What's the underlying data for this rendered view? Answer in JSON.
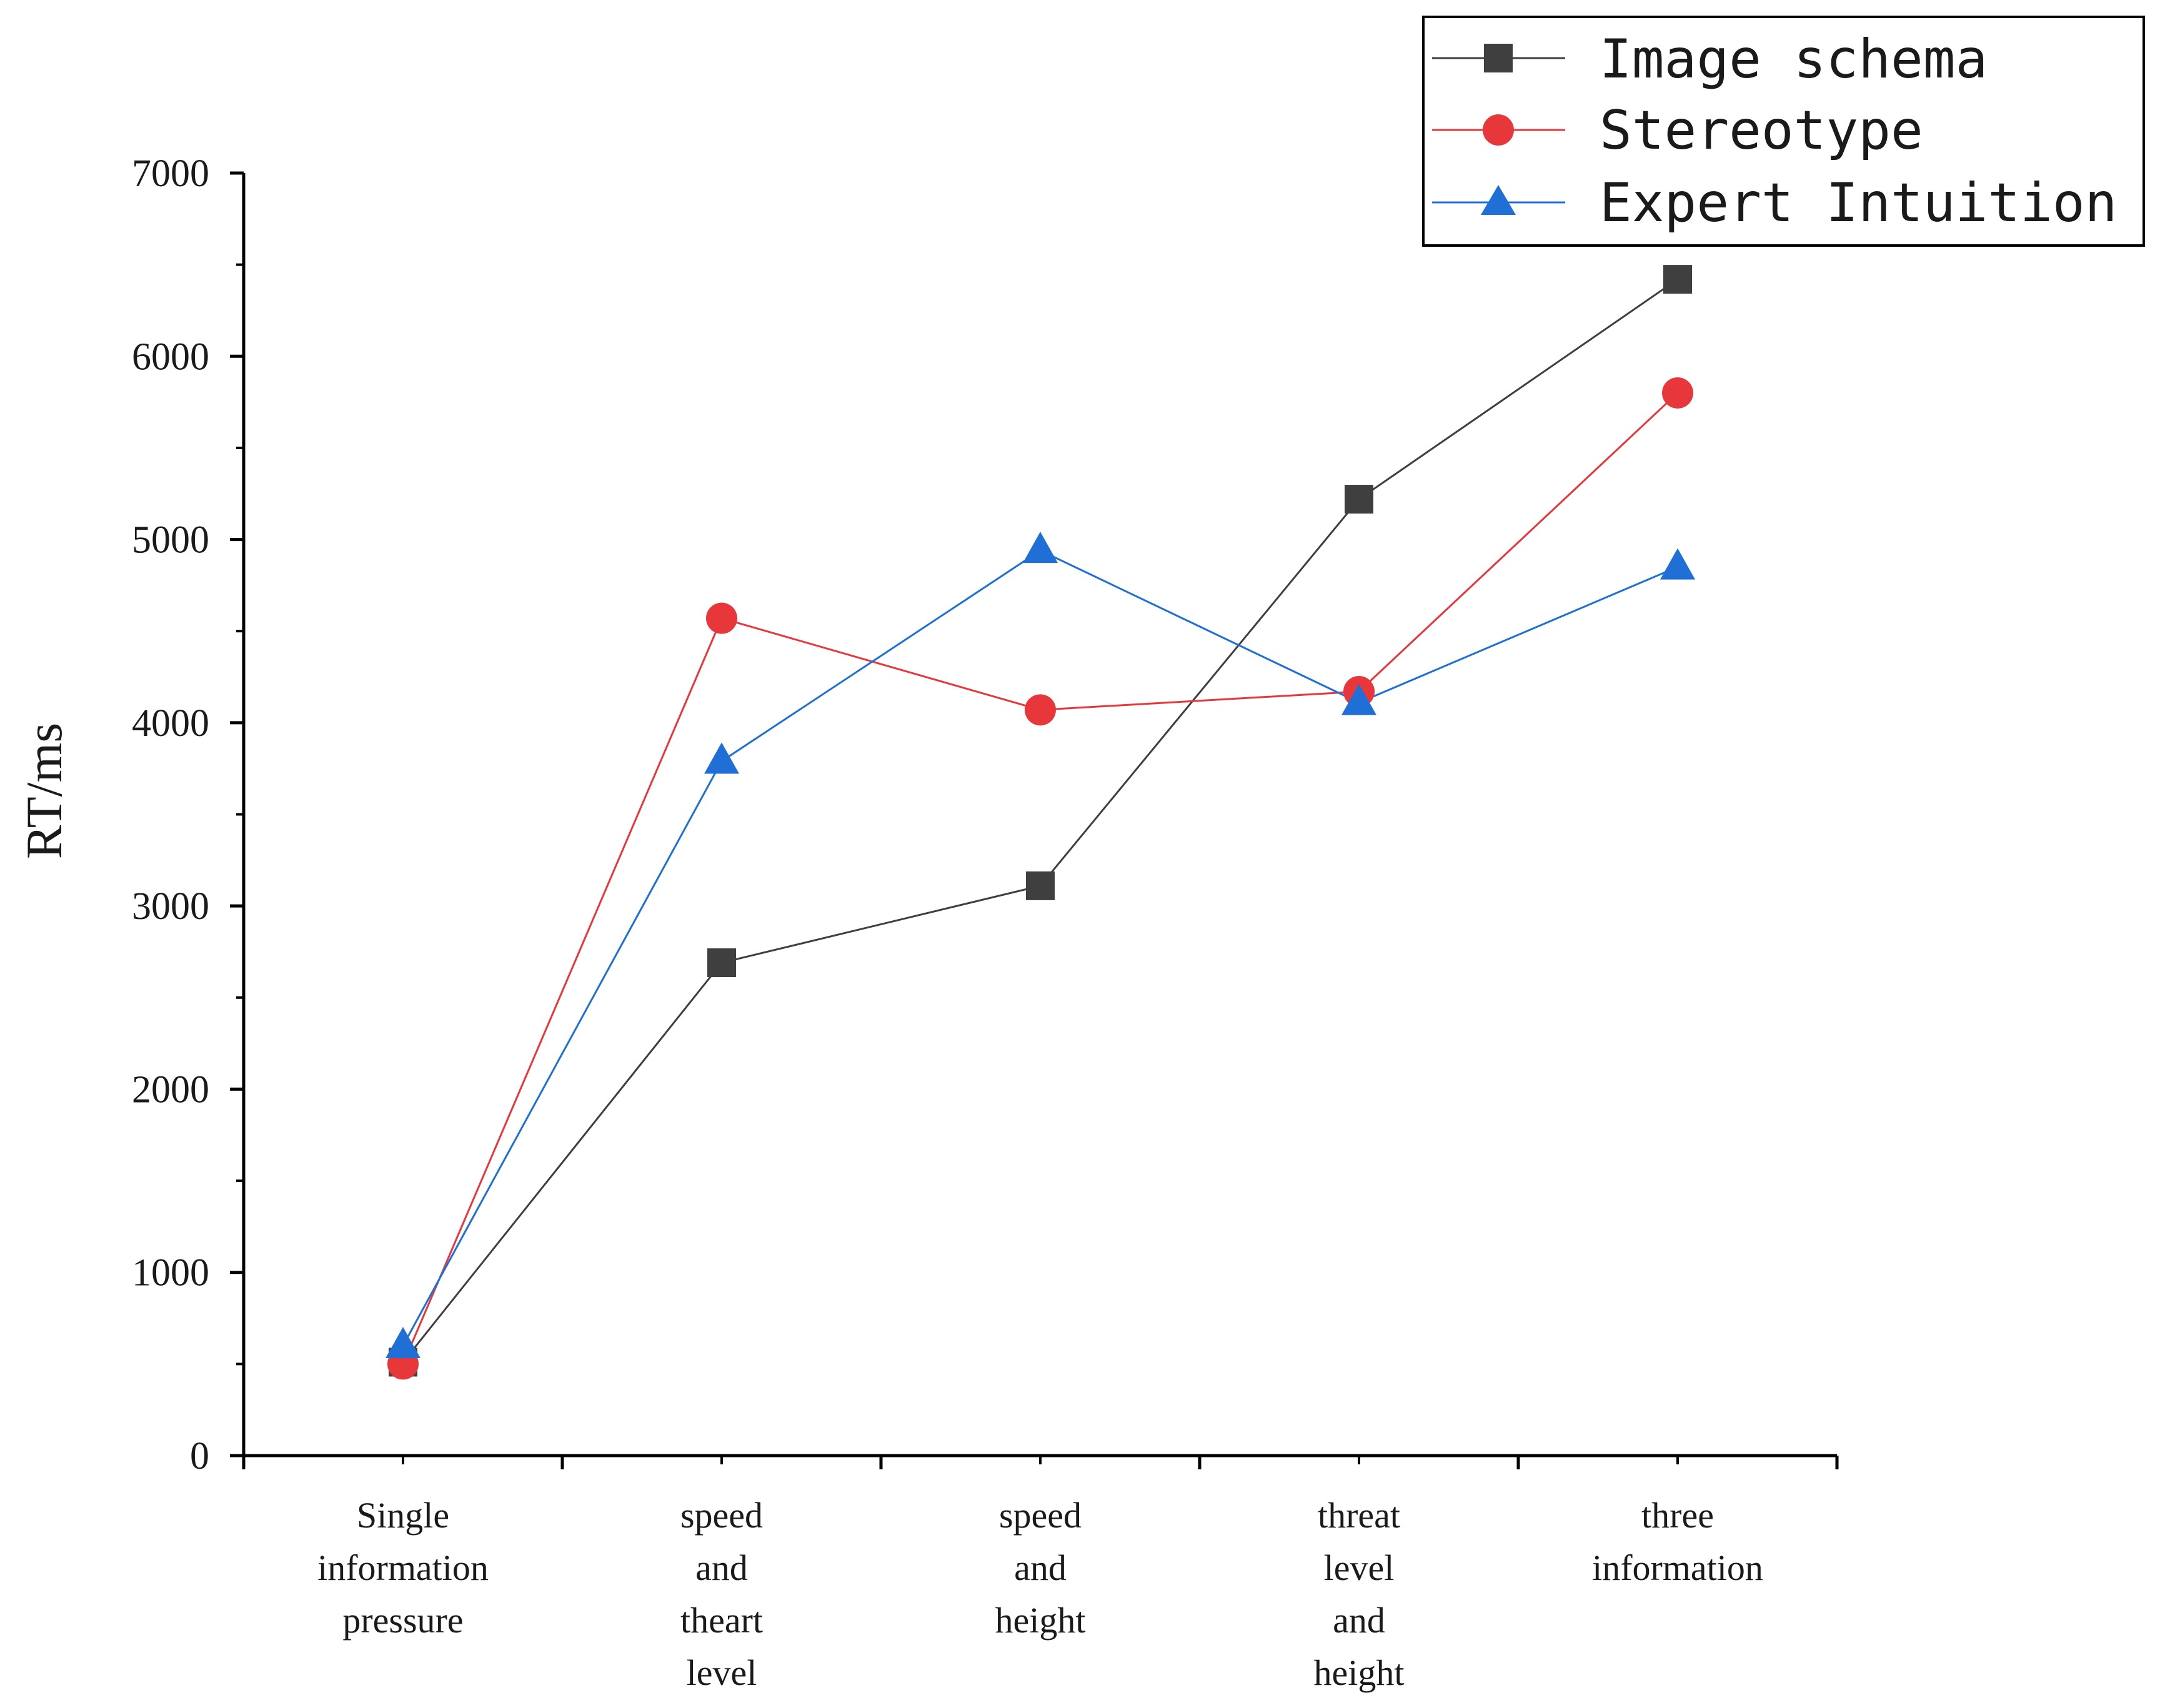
{
  "chart_data": {
    "type": "line",
    "title": "",
    "xlabel": "",
    "ylabel": "RT/ms",
    "ylim": [
      0,
      7000
    ],
    "yticks": [
      0,
      1000,
      2000,
      3000,
      4000,
      5000,
      6000,
      7000
    ],
    "categories": [
      [
        "Single",
        "information",
        "pressure"
      ],
      [
        "speed",
        "and",
        "theart",
        "level"
      ],
      [
        "speed",
        "and",
        "height"
      ],
      [
        "threat",
        "level",
        "and",
        "height"
      ],
      [
        "three",
        "information"
      ]
    ],
    "series": [
      {
        "name": "Image schema",
        "color": "#3f3f3f",
        "marker": "square",
        "values": [
          510,
          2690,
          3110,
          5220,
          6420
        ]
      },
      {
        "name": "Stereotype",
        "color": "#e8373b",
        "marker": "circle",
        "values": [
          500,
          4570,
          4070,
          4170,
          5800
        ]
      },
      {
        "name": "Expert Intuition",
        "color": "#1f6fd6",
        "marker": "triangle",
        "values": [
          600,
          3790,
          4940,
          4110,
          4850
        ]
      }
    ],
    "legend_position": "top-right",
    "grid": false
  }
}
